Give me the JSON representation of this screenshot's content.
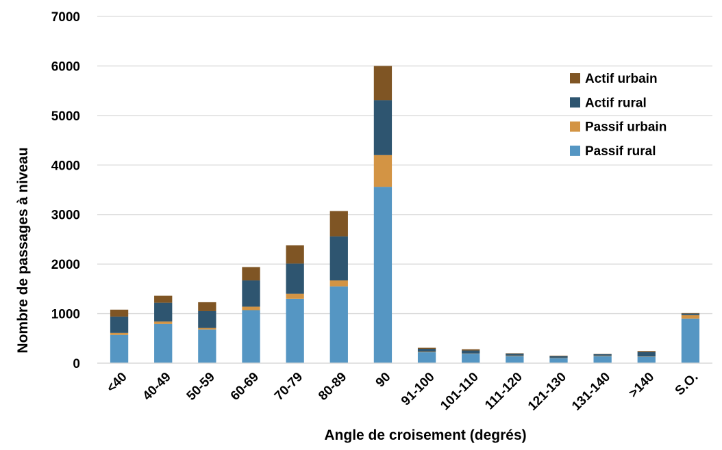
{
  "chart_data": {
    "type": "bar",
    "stacked": true,
    "title": "",
    "xlabel": "Angle de croisement (degrés)",
    "ylabel": "Nombre de passages à niveau",
    "ylim": [
      0,
      7000
    ],
    "yticks": [
      0,
      1000,
      2000,
      3000,
      4000,
      5000,
      6000,
      7000
    ],
    "grid": true,
    "legend_position": "top-right",
    "categories": [
      "<40",
      "40-49",
      "50-59",
      "60-69",
      "70-79",
      "80-89",
      "90",
      "91-100",
      "101-110",
      "111-120",
      "121-130",
      "131-140",
      ">140",
      "S.O."
    ],
    "series": [
      {
        "name": "Passif rural",
        "color": "#5596c3",
        "values": [
          570,
          790,
          680,
          1070,
          1300,
          1550,
          3560,
          220,
          190,
          140,
          100,
          140,
          130,
          900
        ]
      },
      {
        "name": "Passif urbain",
        "color": "#d39444",
        "values": [
          40,
          50,
          30,
          70,
          100,
          120,
          640,
          10,
          5,
          10,
          5,
          10,
          5,
          70
        ]
      },
      {
        "name": "Actif rural",
        "color": "#2e5570",
        "values": [
          330,
          380,
          340,
          530,
          610,
          890,
          1110,
          60,
          60,
          40,
          35,
          30,
          90,
          30
        ]
      },
      {
        "name": "Actif urbain",
        "color": "#7f5524",
        "values": [
          140,
          140,
          180,
          270,
          370,
          510,
          690,
          20,
          25,
          10,
          10,
          5,
          20,
          10
        ]
      }
    ],
    "legend_order": [
      "Actif urbain",
      "Actif rural",
      "Passif urbain",
      "Passif rural"
    ]
  }
}
